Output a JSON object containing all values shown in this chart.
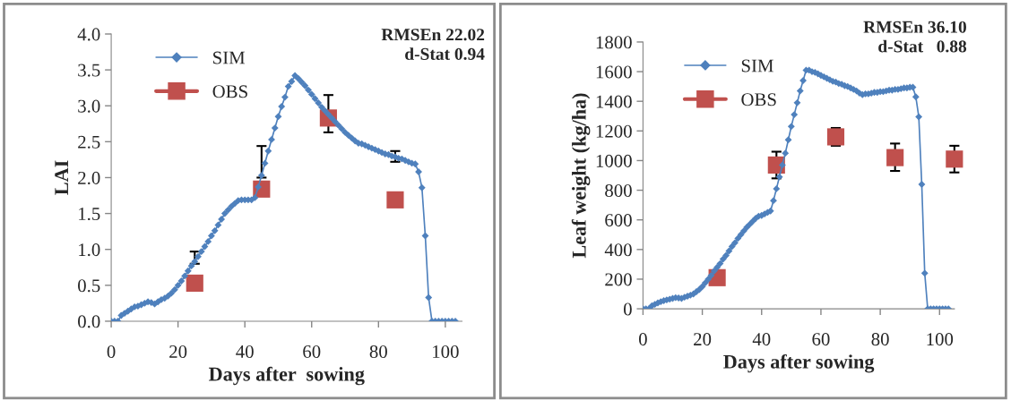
{
  "chart_data": [
    {
      "type": "line",
      "xlabel": "Days after  sowing",
      "ylabel": "LAI",
      "xlim": [
        0,
        105
      ],
      "xticks": [
        0,
        20,
        40,
        60,
        80,
        100
      ],
      "ylim": [
        0,
        4
      ],
      "yticks": [
        {
          "value": 0,
          "label": "0.0"
        },
        {
          "value": 0.5,
          "label": "0.5"
        },
        {
          "value": 1,
          "label": "1.0"
        },
        {
          "value": 1.5,
          "label": "1.5"
        },
        {
          "value": 2,
          "label": "2.0"
        },
        {
          "value": 2.5,
          "label": "2.5"
        },
        {
          "value": 3,
          "label": "3.0"
        },
        {
          "value": 3.5,
          "label": "3.5"
        },
        {
          "value": 4,
          "label": "4.0"
        }
      ],
      "grid": false,
      "legend": "top left",
      "annotations": [
        "RMSEn 22.02\nd-Stat 0.94"
      ],
      "series": [
        {
          "name": "SIM",
          "color": "#4f81bd",
          "marker": "diamond",
          "line_style": "solid",
          "x": [
            0,
            1,
            2,
            3,
            4,
            5,
            6,
            7,
            8,
            9,
            10,
            11,
            12,
            13,
            14,
            15,
            16,
            17,
            18,
            19,
            20,
            21,
            22,
            23,
            24,
            25,
            26,
            27,
            28,
            29,
            30,
            31,
            32,
            33,
            34,
            35,
            36,
            37,
            38,
            39,
            40,
            41,
            42,
            43,
            44,
            45,
            46,
            47,
            48,
            49,
            50,
            51,
            52,
            53,
            54,
            55,
            56,
            57,
            58,
            59,
            60,
            61,
            62,
            63,
            64,
            65,
            66,
            67,
            68,
            69,
            70,
            71,
            72,
            73,
            74,
            75,
            76,
            77,
            78,
            79,
            80,
            81,
            82,
            83,
            84,
            85,
            86,
            87,
            88,
            89,
            90,
            91,
            92,
            93,
            94,
            95,
            96,
            97,
            98,
            99,
            100,
            101,
            102,
            103
          ],
          "values": [
            0,
            0,
            0,
            0.08,
            0.11,
            0.14,
            0.17,
            0.2,
            0.21,
            0.23,
            0.25,
            0.27,
            0.26,
            0.24,
            0.27,
            0.3,
            0.32,
            0.35,
            0.39,
            0.44,
            0.5,
            0.56,
            0.63,
            0.7,
            0.77,
            0.83,
            0.9,
            0.97,
            1.04,
            1.11,
            1.19,
            1.26,
            1.34,
            1.42,
            1.5,
            1.55,
            1.6,
            1.64,
            1.68,
            1.69,
            1.69,
            1.69,
            1.69,
            1.72,
            1.87,
            2.03,
            2.2,
            2.37,
            2.53,
            2.69,
            2.85,
            2.99,
            3.12,
            3.27,
            3.34,
            3.42,
            3.38,
            3.33,
            3.28,
            3.22,
            3.16,
            3.1,
            3.04,
            2.98,
            2.93,
            2.88,
            2.83,
            2.78,
            2.73,
            2.68,
            2.63,
            2.59,
            2.55,
            2.51,
            2.48,
            2.47,
            2.45,
            2.43,
            2.41,
            2.39,
            2.37,
            2.35,
            2.33,
            2.32,
            2.3,
            2.29,
            2.27,
            2.26,
            2.24,
            2.22,
            2.2,
            2.19,
            2.08,
            1.86,
            1.19,
            0.33,
            0,
            0,
            0,
            0,
            0,
            0,
            0,
            0
          ]
        },
        {
          "name": "OBS",
          "type": "scatter",
          "color": "#c0504d",
          "marker": "square",
          "x": [
            25,
            45,
            65,
            85
          ],
          "values": [
            0.53,
            1.84,
            2.83,
            1.69
          ],
          "errors": [
            [
              0.8,
              0.97
            ],
            [
              2.0,
              2.44
            ],
            [
              2.63,
              3.15
            ],
            [
              2.22,
              2.37
            ]
          ]
        }
      ]
    },
    {
      "type": "line",
      "xlabel": "Days after sowing",
      "ylabel": "Leaf weight (kg/ha)",
      "xlim": [
        0,
        105
      ],
      "xticks": [
        0,
        20,
        40,
        60,
        80,
        100
      ],
      "ylim": [
        0,
        1800
      ],
      "yticks": [
        0,
        200,
        400,
        600,
        800,
        1000,
        1200,
        1400,
        1600,
        1800
      ],
      "grid": false,
      "legend": "top left",
      "annotations": [
        "RMSEn 36.10\nd-Stat   0.88"
      ],
      "series": [
        {
          "name": "SIM",
          "color": "#4f81bd",
          "marker": "diamond",
          "line_style": "solid",
          "x": [
            0,
            1,
            2,
            3,
            4,
            5,
            6,
            7,
            8,
            9,
            10,
            11,
            12,
            13,
            14,
            15,
            16,
            17,
            18,
            19,
            20,
            21,
            22,
            23,
            24,
            25,
            26,
            27,
            28,
            29,
            30,
            31,
            32,
            33,
            34,
            35,
            36,
            37,
            38,
            39,
            40,
            41,
            42,
            43,
            44,
            45,
            46,
            47,
            48,
            49,
            50,
            51,
            52,
            53,
            54,
            55,
            56,
            57,
            58,
            59,
            60,
            61,
            62,
            63,
            64,
            65,
            66,
            67,
            68,
            69,
            70,
            71,
            72,
            73,
            74,
            75,
            76,
            77,
            78,
            79,
            80,
            81,
            82,
            83,
            84,
            85,
            86,
            87,
            88,
            89,
            90,
            91,
            92,
            93,
            94,
            95,
            96,
            97,
            98,
            99,
            100,
            101,
            102,
            103
          ],
          "values": [
            0,
            0,
            0,
            20,
            30,
            40,
            48,
            55,
            60,
            65,
            70,
            75,
            73,
            70,
            78,
            85,
            92,
            100,
            115,
            130,
            150,
            175,
            200,
            225,
            255,
            280,
            305,
            335,
            360,
            390,
            420,
            445,
            475,
            500,
            525,
            550,
            570,
            590,
            610,
            625,
            630,
            640,
            650,
            660,
            730,
            810,
            890,
            970,
            1050,
            1140,
            1230,
            1310,
            1390,
            1470,
            1540,
            1610,
            1610,
            1600,
            1595,
            1585,
            1575,
            1565,
            1555,
            1545,
            1535,
            1530,
            1520,
            1515,
            1505,
            1500,
            1490,
            1480,
            1470,
            1455,
            1445,
            1450,
            1450,
            1455,
            1460,
            1460,
            1465,
            1465,
            1470,
            1475,
            1475,
            1480,
            1480,
            1485,
            1490,
            1490,
            1495,
            1495,
            1430,
            1295,
            840,
            240,
            0,
            0,
            0,
            0,
            0,
            0,
            0,
            0
          ]
        },
        {
          "name": "OBS",
          "type": "scatter",
          "color": "#c0504d",
          "marker": "square",
          "x": [
            25,
            45,
            65,
            85,
            105
          ],
          "values": [
            210,
            970,
            1160,
            1020,
            1010
          ],
          "errors": [
            null,
            [
              880,
              1060
            ],
            [
              1100,
              1220
            ],
            [
              930,
              1115
            ],
            [
              920,
              1100
            ]
          ]
        }
      ]
    }
  ]
}
